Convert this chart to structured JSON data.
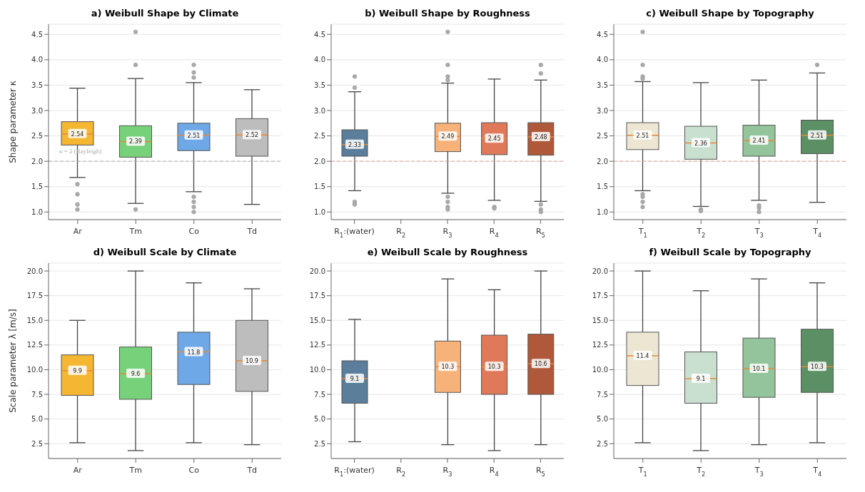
{
  "chart_data": [
    {
      "type": "box",
      "title": "a) Weibull Shape by Climate",
      "ylabel": "Shape parameter κ",
      "categories": [
        "Ar",
        "Tm",
        "Co",
        "Td"
      ],
      "colors": [
        "#f5b731",
        "#77d17a",
        "#6fa8e6",
        "#bdbdbd"
      ],
      "boxes": [
        {
          "low": 1.68,
          "q1": 2.32,
          "median": 2.54,
          "q3": 2.78,
          "high": 3.44,
          "outliers": [
            1.55,
            1.35,
            1.15,
            1.05
          ]
        },
        {
          "low": 1.17,
          "q1": 2.08,
          "median": 2.39,
          "q3": 2.7,
          "high": 3.63,
          "outliers": [
            4.55,
            3.9,
            1.05
          ]
        },
        {
          "low": 1.4,
          "q1": 2.21,
          "median": 2.51,
          "q3": 2.75,
          "high": 3.55,
          "outliers": [
            3.9,
            3.75,
            3.65,
            1.3,
            1.2,
            1.1,
            1.0
          ]
        },
        {
          "low": 1.15,
          "q1": 2.1,
          "median": 2.52,
          "q3": 2.84,
          "high": 3.41
        }
      ],
      "ylim": [
        0.85,
        4.7
      ],
      "yticks": [
        {
          "value": 1,
          "label": "1.0"
        },
        1.5,
        {
          "value": 2,
          "label": "2.0"
        },
        2.5,
        {
          "value": 3,
          "label": "3.0"
        },
        3.5,
        {
          "value": 4,
          "label": "4.0"
        },
        4.5
      ],
      "ref_lines": [
        {
          "axis": "y",
          "value": 2,
          "label": "κ = 2 (Rayleigh)",
          "color": "#aaaaaa",
          "line_style": "dashed"
        }
      ],
      "grid": "y",
      "value_labels": [
        "2.54",
        "2.39",
        "2.51",
        "2.52"
      ]
    },
    {
      "type": "box",
      "title": "b) Weibull Shape by Roughness",
      "categories": [
        "R$_{1}$:(water)",
        "R$_{2}$",
        "R$_{3}$",
        "R$_{4}$",
        "R$_{5}$"
      ],
      "colors": [
        "#5a7e9b",
        null,
        "#f7b27a",
        "#e0785a",
        "#b0583a"
      ],
      "boxes": [
        {
          "low": 1.42,
          "q1": 2.1,
          "median": 2.33,
          "q3": 2.62,
          "high": 3.37,
          "outliers": [
            3.67,
            3.45,
            1.2,
            1.15
          ]
        },
        null,
        {
          "low": 1.37,
          "q1": 2.19,
          "median": 2.49,
          "q3": 2.75,
          "high": 3.54,
          "outliers": [
            4.55,
            3.9,
            3.67,
            3.6,
            1.3,
            1.2,
            1.1,
            1.05
          ]
        },
        {
          "low": 1.23,
          "q1": 2.13,
          "median": 2.45,
          "q3": 2.76,
          "high": 3.62,
          "outliers": [
            1.1,
            1.07
          ]
        },
        {
          "low": 1.21,
          "q1": 2.12,
          "median": 2.48,
          "q3": 2.76,
          "high": 3.6,
          "outliers": [
            3.9,
            3.73,
            1.15,
            1.05,
            1.0
          ]
        }
      ],
      "ylim": [
        0.85,
        4.7
      ],
      "yticks": [
        {
          "value": 1,
          "label": "1.0"
        },
        1.5,
        {
          "value": 2,
          "label": "2.0"
        },
        2.5,
        {
          "value": 3,
          "label": "3.0"
        },
        3.5,
        {
          "value": 4,
          "label": "4.0"
        },
        4.5
      ],
      "ref_lines": [
        {
          "axis": "y",
          "value": 2,
          "color": "#e0a090",
          "line_style": "dashed"
        }
      ],
      "grid": "y",
      "value_labels": [
        "2.33",
        null,
        "2.49",
        "2.45",
        "2.48"
      ]
    },
    {
      "type": "box",
      "title": "c) Weibull Shape by Topography",
      "categories": [
        "T$_{1}$",
        "T$_{2}$",
        "T$_{3}$",
        "T$_{4}$"
      ],
      "colors": [
        "#ece6d3",
        "#c9dfcf",
        "#94c49b",
        "#5b8f64"
      ],
      "boxes": [
        {
          "low": 1.42,
          "q1": 2.23,
          "median": 2.51,
          "q3": 2.76,
          "high": 3.57,
          "outliers": [
            4.55,
            3.9,
            3.67,
            3.63,
            1.35,
            1.3,
            1.2,
            1.1
          ]
        },
        {
          "low": 1.11,
          "q1": 2.04,
          "median": 2.36,
          "q3": 2.69,
          "high": 3.55,
          "outliers": [
            1.05,
            1.02
          ]
        },
        {
          "low": 1.23,
          "q1": 2.1,
          "median": 2.41,
          "q3": 2.71,
          "high": 3.6,
          "outliers": [
            1.13,
            1.08,
            1.0
          ]
        },
        {
          "low": 1.19,
          "q1": 2.15,
          "median": 2.51,
          "q3": 2.81,
          "high": 3.74,
          "outliers": [
            3.9
          ]
        }
      ],
      "ylim": [
        0.85,
        4.7
      ],
      "yticks": [
        {
          "value": 1,
          "label": "1.0"
        },
        1.5,
        {
          "value": 2,
          "label": "2.0"
        },
        2.5,
        {
          "value": 3,
          "label": "3.0"
        },
        3.5,
        {
          "value": 4,
          "label": "4.0"
        },
        4.5
      ],
      "ref_lines": [
        {
          "axis": "y",
          "value": 2,
          "color": "#e0a090",
          "line_style": "dashed"
        }
      ],
      "grid": "y",
      "value_labels": [
        "2.51",
        "2.36",
        "2.41",
        "2.51"
      ]
    },
    {
      "type": "box",
      "title": "d) Weibull Scale by Climate",
      "ylabel": "Scale parameter λ [m/s]",
      "categories": [
        "Ar",
        "Tm",
        "Co",
        "Td"
      ],
      "colors": [
        "#f5b731",
        "#77d17a",
        "#6fa8e6",
        "#bdbdbd"
      ],
      "boxes": [
        {
          "low": 2.6,
          "q1": 7.4,
          "median": 9.9,
          "q3": 11.5,
          "high": 15.0
        },
        {
          "low": 1.8,
          "q1": 7.0,
          "median": 9.6,
          "q3": 12.3,
          "high": 20.0
        },
        {
          "low": 2.6,
          "q1": 8.5,
          "median": 11.8,
          "q3": 13.8,
          "high": 18.8
        },
        {
          "low": 2.4,
          "q1": 7.8,
          "median": 10.9,
          "q3": 15.0,
          "high": 18.2
        }
      ],
      "ylim": [
        1.0,
        20.8
      ],
      "yticks": [
        2.5,
        {
          "value": 5,
          "label": "5.0"
        },
        7.5,
        {
          "value": 10,
          "label": "10.0"
        },
        12.5,
        {
          "value": 15,
          "label": "15.0"
        },
        17.5,
        {
          "value": 20,
          "label": "20.0"
        }
      ],
      "grid": "y",
      "value_labels": [
        "9.9",
        "9.6",
        "11.8",
        "10.9"
      ]
    },
    {
      "type": "box",
      "title": "e) Weibull Scale by Roughness",
      "categories": [
        "R$_{1}$:(water)",
        "R$_{2}$",
        "R$_{3}$",
        "R$_{4}$",
        "R$_{5}$"
      ],
      "colors": [
        "#5a7e9b",
        null,
        "#f7b27a",
        "#e0785a",
        "#b0583a"
      ],
      "boxes": [
        {
          "low": 2.7,
          "q1": 6.6,
          "median": 9.1,
          "q3": 10.9,
          "high": 15.1
        },
        null,
        {
          "low": 2.4,
          "q1": 7.7,
          "median": 10.3,
          "q3": 12.9,
          "high": 19.2
        },
        {
          "low": 1.8,
          "q1": 7.5,
          "median": 10.3,
          "q3": 13.5,
          "high": 18.1
        },
        {
          "low": 2.4,
          "q1": 7.5,
          "median": 10.6,
          "q3": 13.6,
          "high": 20.0
        }
      ],
      "ylim": [
        1.0,
        20.8
      ],
      "yticks": [
        2.5,
        {
          "value": 5,
          "label": "5.0"
        },
        7.5,
        {
          "value": 10,
          "label": "10.0"
        },
        12.5,
        {
          "value": 15,
          "label": "15.0"
        },
        17.5,
        {
          "value": 20,
          "label": "20.0"
        }
      ],
      "grid": "y",
      "value_labels": [
        "9.1",
        null,
        "10.3",
        "10.3",
        "10.6"
      ]
    },
    {
      "type": "box",
      "title": "f) Weibull Scale by Topography",
      "categories": [
        "T$_{1}$",
        "T$_{2}$",
        "T$_{3}$",
        "T$_{4}$"
      ],
      "colors": [
        "#ece6d3",
        "#c9dfcf",
        "#94c49b",
        "#5b8f64"
      ],
      "boxes": [
        {
          "low": 2.6,
          "q1": 8.4,
          "median": 11.4,
          "q3": 13.8,
          "high": 20.0
        },
        {
          "low": 1.8,
          "q1": 6.6,
          "median": 9.1,
          "q3": 11.8,
          "high": 18.0
        },
        {
          "low": 2.4,
          "q1": 7.2,
          "median": 10.1,
          "q3": 13.2,
          "high": 19.2
        },
        {
          "low": 2.6,
          "q1": 7.7,
          "median": 10.3,
          "q3": 14.1,
          "high": 18.8
        }
      ],
      "ylim": [
        1.0,
        20.8
      ],
      "yticks": [
        2.5,
        {
          "value": 5,
          "label": "5.0"
        },
        7.5,
        {
          "value": 10,
          "label": "10.0"
        },
        12.5,
        {
          "value": 15,
          "label": "15.0"
        },
        17.5,
        {
          "value": 20,
          "label": "20.0"
        }
      ],
      "grid": "y",
      "value_labels": [
        "11.4",
        "9.1",
        "10.1",
        "10.3"
      ]
    }
  ]
}
